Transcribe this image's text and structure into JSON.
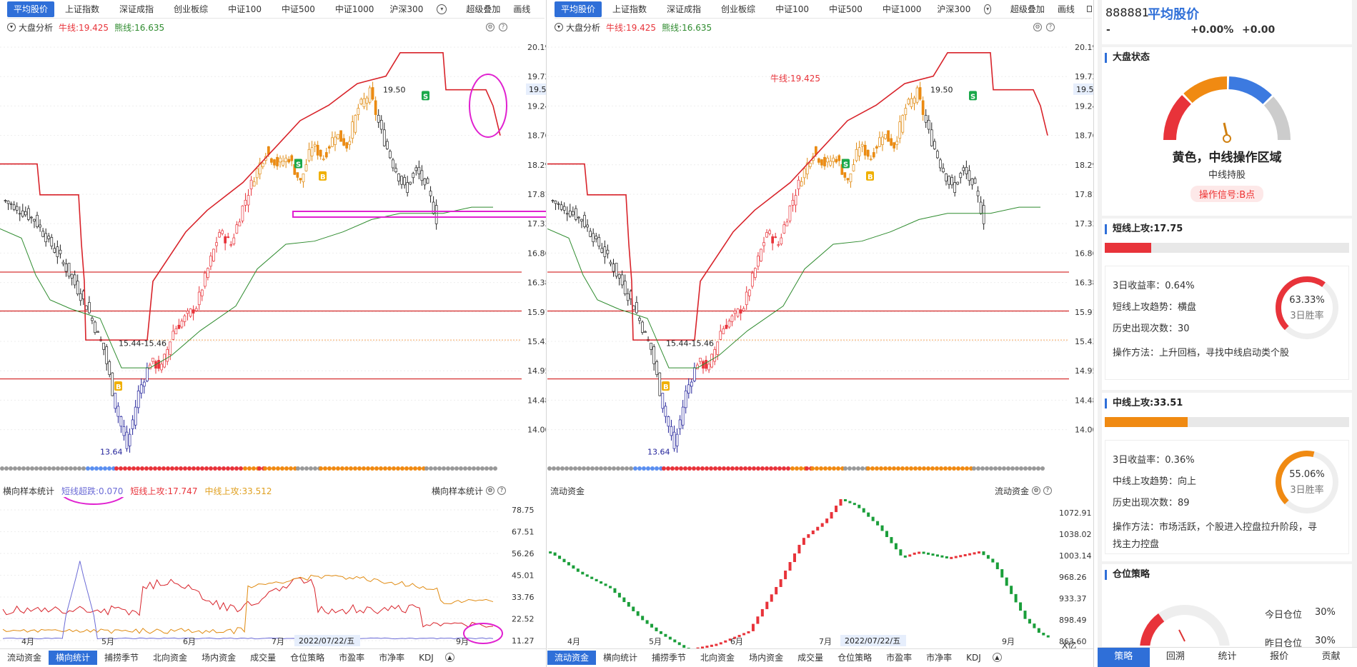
{
  "tabs_left": [
    "平均股价",
    "上证指数",
    "深证成指",
    "创业板综",
    "中证100",
    "中证500",
    "中证1000",
    "沪深300"
  ],
  "tabs_left_extra": [
    "超级叠加",
    "画线"
  ],
  "tabs_right": [
    "平均股价",
    "上证指数",
    "深证成指",
    "创业板综",
    "中证100",
    "中证500",
    "中证1000",
    "沪深300"
  ],
  "tabs_right_extra": [
    "超级叠加",
    "画线"
  ],
  "panel_left": {
    "indicator_name": "大盘分析",
    "bull_line": "牛线:19.425",
    "bear_line": "熊线:16.635",
    "price_axis": [
      "20.19",
      "19.72",
      "19.24",
      "18.76",
      "18.29",
      "17.81",
      "17.33",
      "16.86",
      "16.38",
      "15.91",
      "15.43",
      "14.95",
      "14.48",
      "14.00"
    ],
    "current_price": "19.51",
    "high_label": "19.50",
    "range_label": "15.44-15.46",
    "low_label": "13.64",
    "sub_name": "横向样本统计",
    "sub_short": "短线超跌:0.070",
    "sub_mid_up_short": "短线上攻:17.747",
    "sub_mid_up": "中线上攻:33.512",
    "sub_right_label": "横向样本统计",
    "sub_axis": [
      "78.75",
      "67.51",
      "56.26",
      "45.01",
      "33.76",
      "22.52",
      "11.27"
    ],
    "months": [
      "4月",
      "5月",
      "6月",
      "7月"
    ],
    "date_tip": "2022/07/22/五",
    "month_after_tip": "9月"
  },
  "panel_right": {
    "indicator_name": "大盘分析",
    "bull_line": "牛线:19.425",
    "bear_line": "熊线:16.635",
    "bull_mid_label": "牛线:19.425",
    "price_axis": [
      "20.19",
      "19.72",
      "19.24",
      "18.76",
      "18.29",
      "17.81",
      "17.33",
      "16.86",
      "16.38",
      "15.91",
      "15.43",
      "14.95",
      "14.48",
      "14.00"
    ],
    "current_price": "19.51",
    "high_label": "19.50",
    "range_label": "15.44-15.46",
    "low_label": "13.64",
    "sub_name": "流动资金",
    "sub_right_label": "流动资金",
    "sub_axis": [
      "1072.91",
      "1038.02",
      "1003.14",
      "968.26",
      "933.37",
      "898.49",
      "863.60"
    ],
    "sub_unit": "X亿",
    "months": [
      "4月",
      "5月",
      "6月",
      "7月",
      "9月"
    ],
    "date_tip": "2022/07/22/五"
  },
  "bottom_tabs_left": [
    "流动资金",
    "横向统计",
    "捕捞季节",
    "北向资金",
    "场内资金",
    "成交量",
    "仓位策略",
    "市盈率",
    "市净率",
    "KDJ"
  ],
  "bottom_tabs_left_active": 1,
  "bottom_tabs_right": [
    "流动资金",
    "横向统计",
    "捕捞季节",
    "北向资金",
    "场内资金",
    "成交量",
    "仓位策略",
    "市盈率",
    "市净率",
    "KDJ"
  ],
  "bottom_tabs_right_active": 0,
  "side": {
    "code": "888881",
    "name": "平均股价",
    "price": "-",
    "change_pct": "+0.00%",
    "change": "+0.00",
    "market_state_title": "大盘状态",
    "state_text": "黄色，中线操作区域",
    "state_sub": "中线持股",
    "signal": "操作信号:B点",
    "short_title": "短线上攻:17.75",
    "short_bar_pct": 0.19,
    "short_lines": [
      "3日收益率：0.64%",
      "短线上攻趋势：横盘",
      "历史出现次数：30",
      "操作方法：上升回档，寻找中线启动类个股"
    ],
    "short_ring_value": "63.33%",
    "short_ring_label": "3日胜率",
    "short_ring_pct": 0.6333,
    "mid_title": "中线上攻:33.51",
    "mid_bar_pct": 0.34,
    "mid_lines": [
      "3日收益率：0.36%",
      "中线上攻趋势：向上",
      "历史出现次数：89",
      "操作方法：市场活跃，个股进入控盘拉升阶段，寻",
      "找主力控盘"
    ],
    "mid_ring_value": "55.06%",
    "mid_ring_label": "3日胜率",
    "mid_ring_pct": 0.5506,
    "pos_title": "仓位策略",
    "today_pos": "今日仓位",
    "today_pos_val": "30%",
    "yest_pos": "昨日仓位",
    "yest_pos_val": "30%",
    "bottom_tabs": [
      "策略",
      "回溯",
      "统计",
      "报价",
      "贡献"
    ]
  },
  "colors": {
    "accent": "#2f6fd8",
    "red": "#e8333a",
    "green": "#2e8b2e",
    "orange": "#f08a12",
    "magenta": "#e020d0"
  }
}
